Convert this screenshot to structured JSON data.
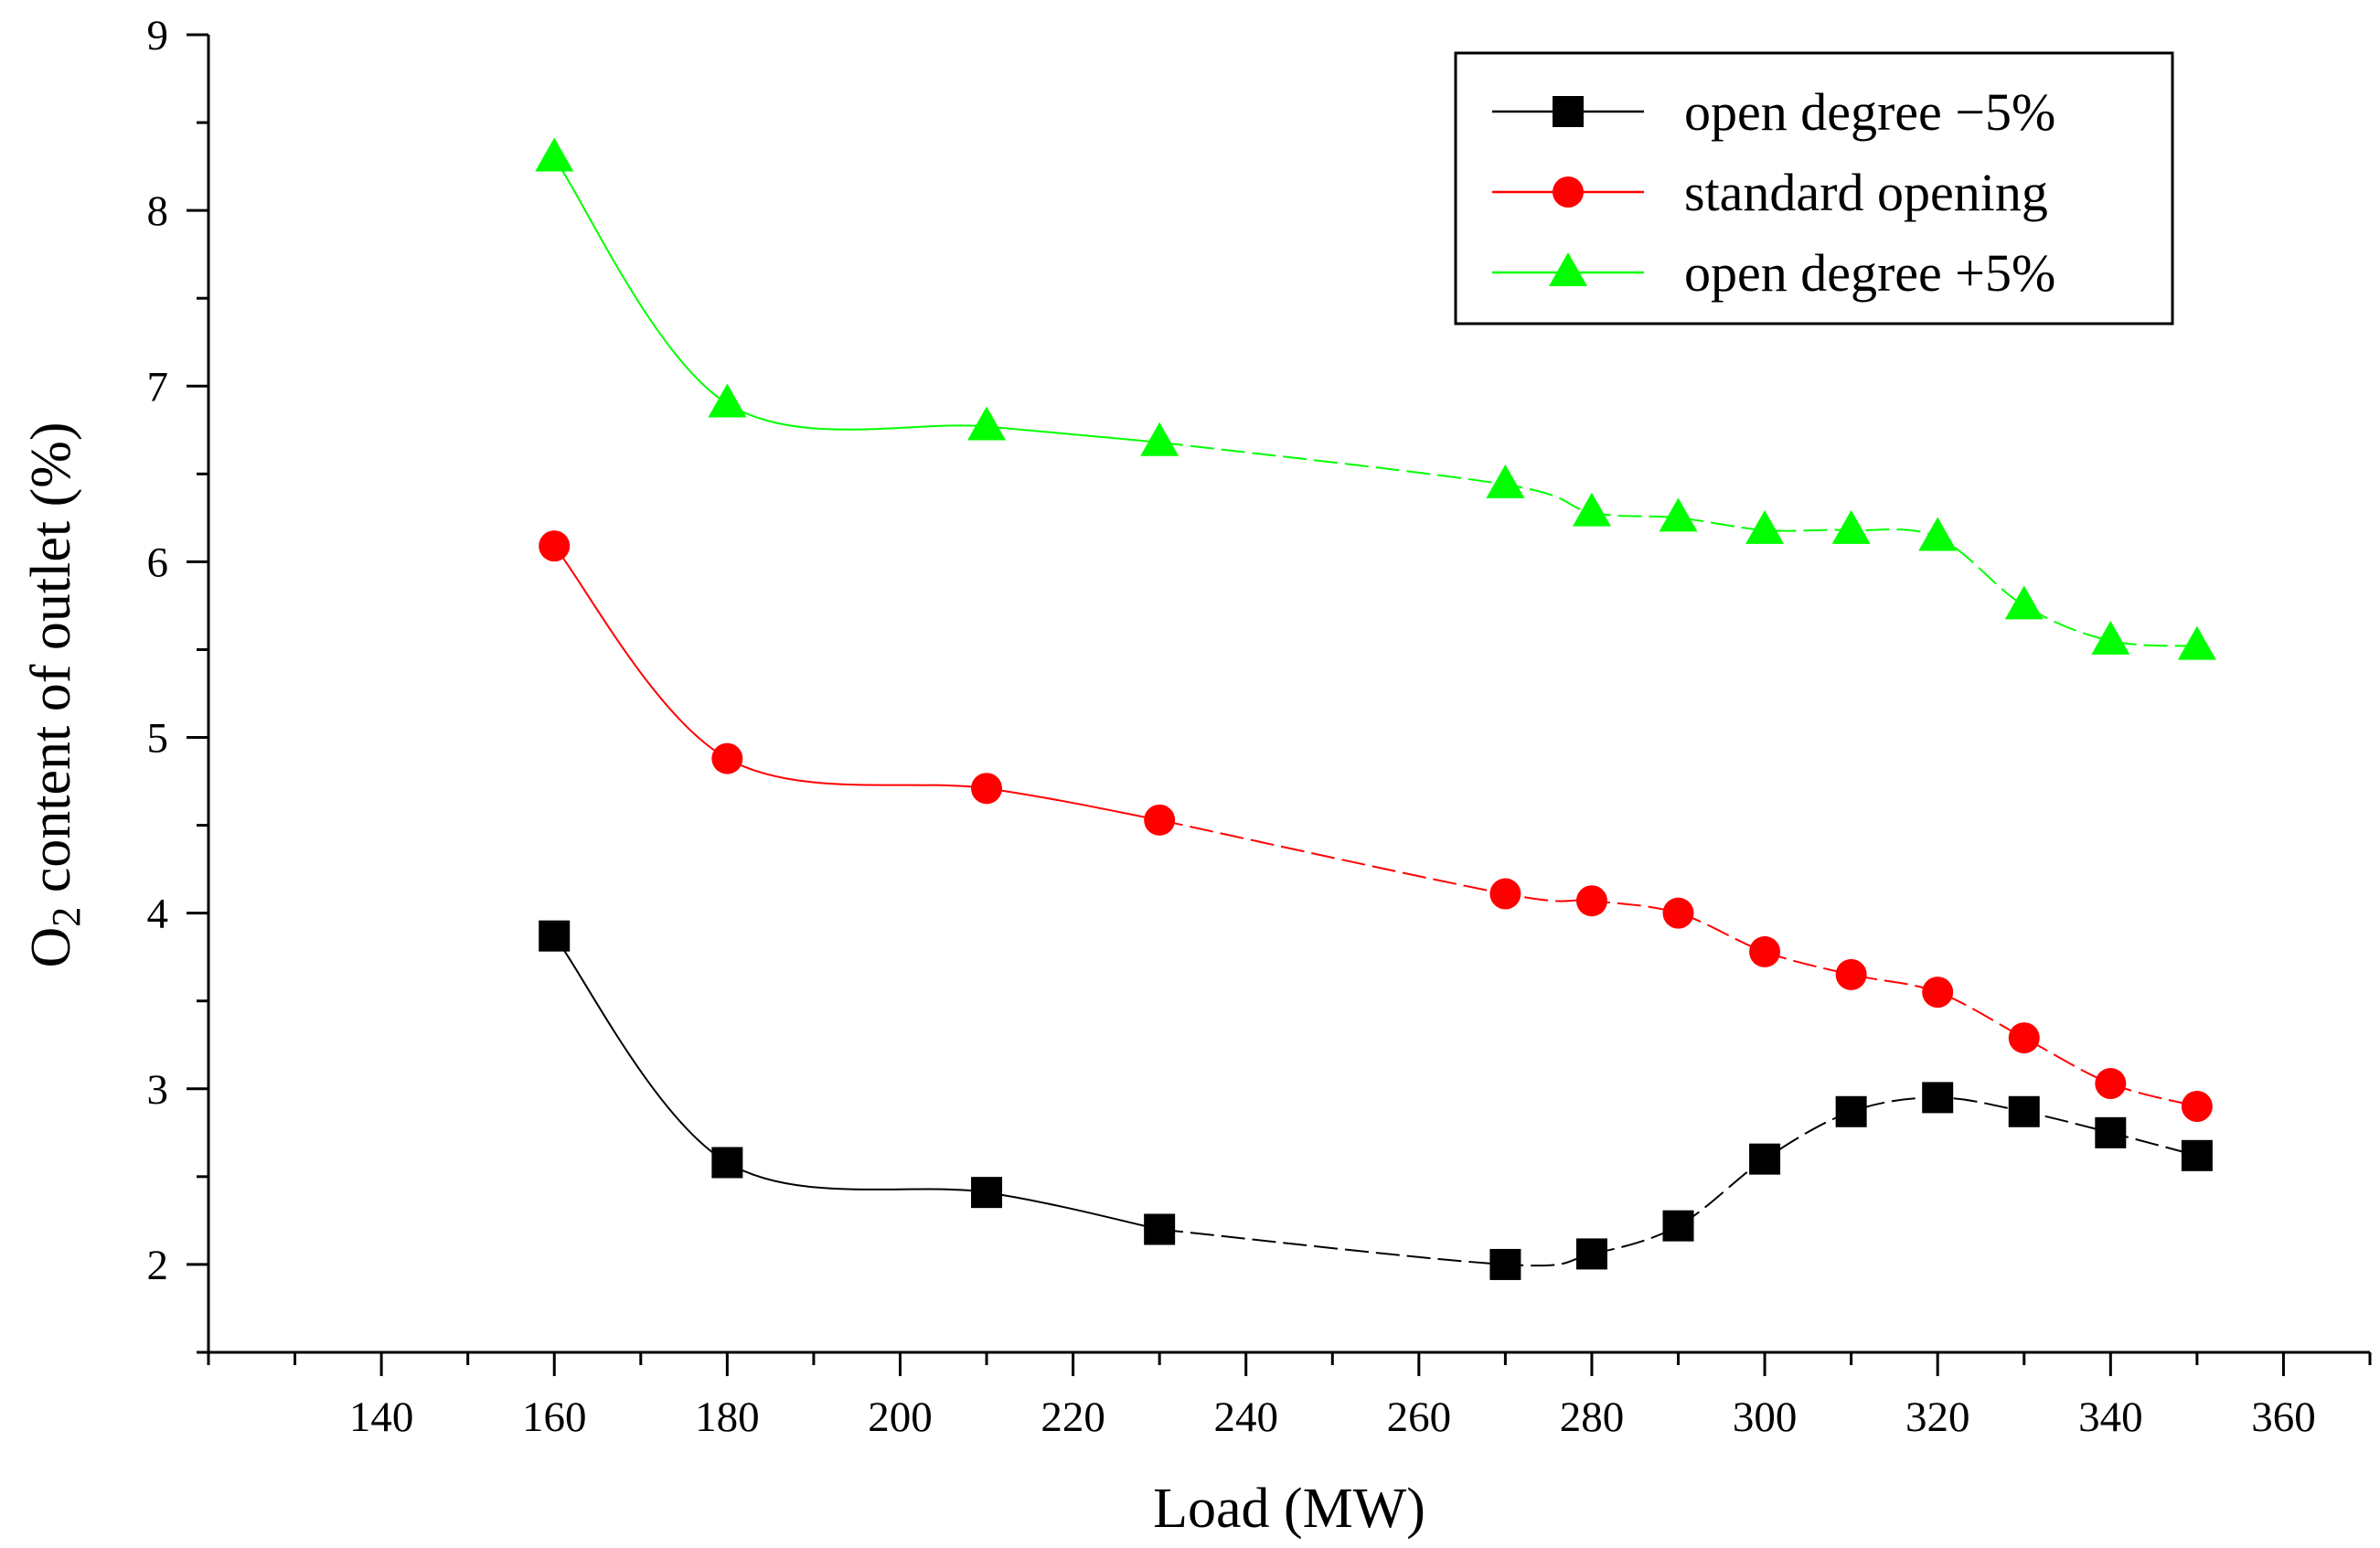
{
  "chart_data": {
    "type": "line",
    "xlabel": "Load (MW)",
    "ylabel_main": "O",
    "ylabel_sub": "2",
    "ylabel_rest": " content of outlet (%)",
    "xlim": [
      120,
      370
    ],
    "ylim": [
      1.5,
      9
    ],
    "x_ticks": [
      140,
      160,
      180,
      200,
      220,
      240,
      260,
      280,
      300,
      320,
      340,
      360
    ],
    "y_ticks": [
      2,
      3,
      4,
      5,
      6,
      7,
      8,
      9
    ],
    "legend_position": "top-right",
    "series": [
      {
        "name": "open degree −5%",
        "color": "#000000",
        "marker": "square",
        "x": [
          160,
          180,
          210,
          230,
          270,
          280,
          290,
          300,
          310,
          320,
          330,
          340,
          350
        ],
        "y": [
          3.87,
          2.58,
          2.41,
          2.2,
          2.0,
          2.06,
          2.22,
          2.6,
          2.87,
          2.95,
          2.87,
          2.75,
          2.62
        ]
      },
      {
        "name": "standard opening",
        "color": "#ff0000",
        "marker": "circle",
        "x": [
          160,
          180,
          210,
          230,
          270,
          280,
          290,
          300,
          310,
          320,
          330,
          340,
          350
        ],
        "y": [
          6.09,
          4.88,
          4.71,
          4.53,
          4.11,
          4.07,
          4.0,
          3.78,
          3.65,
          3.55,
          3.29,
          3.03,
          2.9
        ]
      },
      {
        "name": "open degree +5%",
        "color": "#00ff00",
        "marker": "triangle",
        "x": [
          160,
          180,
          210,
          230,
          270,
          280,
          290,
          300,
          310,
          320,
          330,
          340,
          350
        ],
        "y": [
          8.3,
          6.9,
          6.77,
          6.68,
          6.44,
          6.28,
          6.25,
          6.18,
          6.18,
          6.14,
          5.75,
          5.55,
          5.52
        ]
      }
    ]
  }
}
